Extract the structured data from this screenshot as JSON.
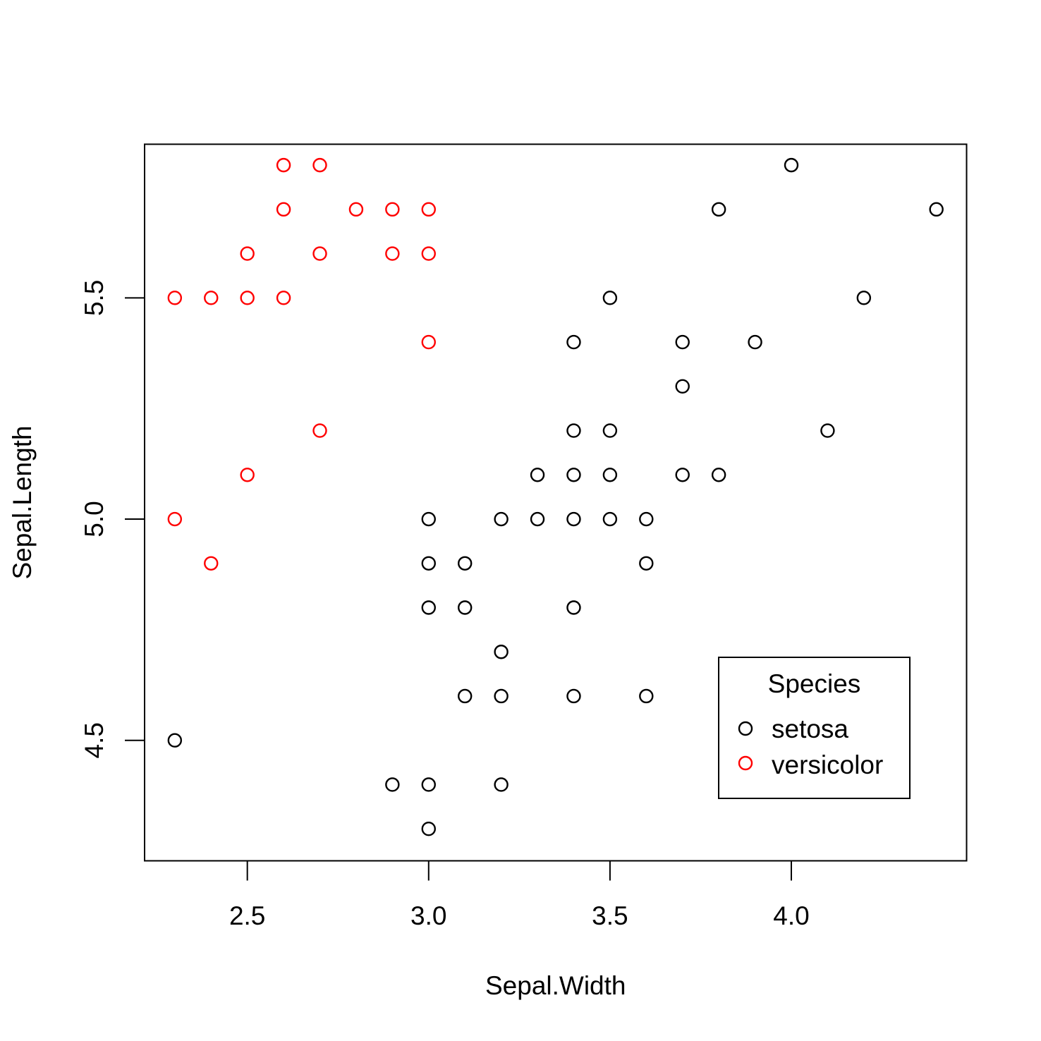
{
  "chart_data": {
    "type": "scatter",
    "title": "",
    "xlabel": "Sepal.Width",
    "ylabel": "Sepal.Length",
    "xlim": [
      2.2167,
      4.4833
    ],
    "ylim": [
      4.2278,
      5.8472
    ],
    "x_ticks": [
      {
        "value": 2.5,
        "label": "2.5"
      },
      {
        "value": 3.0,
        "label": "3.0"
      },
      {
        "value": 3.5,
        "label": "3.5"
      },
      {
        "value": 4.0,
        "label": "4.0"
      }
    ],
    "y_ticks": [
      {
        "value": 4.5,
        "label": "4.5"
      },
      {
        "value": 5.0,
        "label": "5.0"
      },
      {
        "value": 5.5,
        "label": "5.5"
      }
    ],
    "grid": false,
    "legend": {
      "title": "Species",
      "placement": "bottom-right",
      "entries": [
        {
          "label": "setosa",
          "color": "#000000"
        },
        {
          "label": "versicolor",
          "color": "#ff0000"
        }
      ]
    },
    "series": [
      {
        "name": "setosa",
        "color": "#000000",
        "marker": "open-circle",
        "points": [
          [
            4.0,
            5.8
          ],
          [
            3.8,
            5.7
          ],
          [
            4.4,
            5.7
          ],
          [
            3.5,
            5.5
          ],
          [
            4.2,
            5.5
          ],
          [
            3.4,
            5.4
          ],
          [
            3.7,
            5.4
          ],
          [
            3.9,
            5.4
          ],
          [
            3.7,
            5.3
          ],
          [
            3.4,
            5.2
          ],
          [
            3.5,
            5.2
          ],
          [
            4.1,
            5.2
          ],
          [
            3.3,
            5.1
          ],
          [
            3.4,
            5.1
          ],
          [
            3.5,
            5.1
          ],
          [
            3.7,
            5.1
          ],
          [
            3.8,
            5.1
          ],
          [
            3.0,
            5.0
          ],
          [
            3.2,
            5.0
          ],
          [
            3.3,
            5.0
          ],
          [
            3.4,
            5.0
          ],
          [
            3.5,
            5.0
          ],
          [
            3.6,
            5.0
          ],
          [
            3.0,
            4.9
          ],
          [
            3.1,
            4.9
          ],
          [
            3.6,
            4.9
          ],
          [
            3.0,
            4.8
          ],
          [
            3.1,
            4.8
          ],
          [
            3.4,
            4.8
          ],
          [
            3.2,
            4.7
          ],
          [
            3.1,
            4.6
          ],
          [
            3.2,
            4.6
          ],
          [
            3.4,
            4.6
          ],
          [
            3.6,
            4.6
          ],
          [
            2.3,
            4.5
          ],
          [
            2.9,
            4.4
          ],
          [
            3.0,
            4.4
          ],
          [
            3.2,
            4.4
          ],
          [
            3.0,
            4.3
          ]
        ]
      },
      {
        "name": "versicolor",
        "color": "#ff0000",
        "marker": "open-circle",
        "points": [
          [
            2.6,
            5.8
          ],
          [
            2.7,
            5.8
          ],
          [
            2.6,
            5.7
          ],
          [
            2.8,
            5.7
          ],
          [
            2.9,
            5.7
          ],
          [
            3.0,
            5.7
          ],
          [
            2.5,
            5.6
          ],
          [
            2.7,
            5.6
          ],
          [
            2.9,
            5.6
          ],
          [
            3.0,
            5.6
          ],
          [
            2.3,
            5.5
          ],
          [
            2.4,
            5.5
          ],
          [
            2.5,
            5.5
          ],
          [
            2.6,
            5.5
          ],
          [
            3.0,
            5.4
          ],
          [
            2.7,
            5.2
          ],
          [
            2.5,
            5.1
          ],
          [
            2.3,
            5.0
          ],
          [
            2.4,
            4.9
          ]
        ]
      }
    ]
  }
}
